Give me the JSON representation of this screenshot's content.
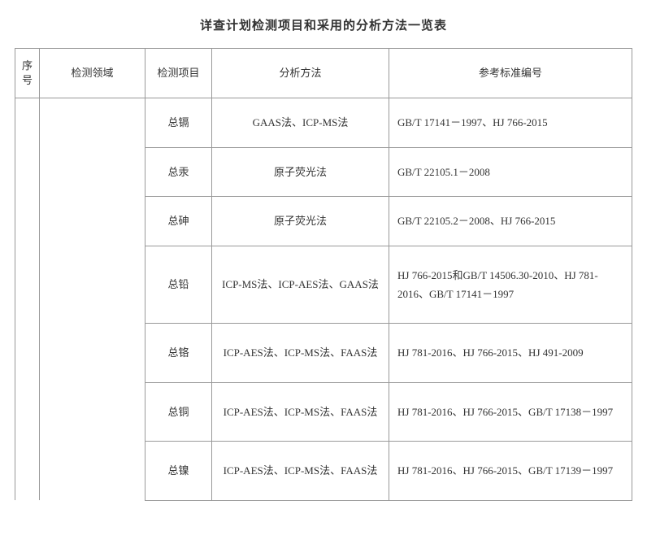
{
  "title": "详查计划检测项目和采用的分析方法一览表",
  "headers": {
    "seq": "序号",
    "domain": "检测领域",
    "item": "检测项目",
    "method": "分析方法",
    "standard": "参考标准编号"
  },
  "rows": [
    {
      "item": "总镉",
      "method": "GAAS法、ICP-MS法",
      "standard": "GB/T 17141－1997、HJ 766-2015"
    },
    {
      "item": "总汞",
      "method": "原子荧光法",
      "standard": "GB/T 22105.1－2008"
    },
    {
      "item": "总砷",
      "method": "原子荧光法",
      "standard": "GB/T 22105.2－2008、HJ 766-2015"
    },
    {
      "item": "总铅",
      "method": "ICP-MS法、ICP-AES法、GAAS法",
      "standard": "HJ 766-2015和GB/T 14506.30-2010、HJ 781-2016、GB/T 17141－1997"
    },
    {
      "item": "总铬",
      "method": "ICP-AES法、ICP-MS法、FAAS法",
      "standard": "HJ 781-2016、HJ 766-2015、HJ 491-2009"
    },
    {
      "item": "总铜",
      "method": "ICP-AES法、ICP-MS法、FAAS法",
      "standard": "HJ 781-2016、HJ 766-2015、GB/T 17138－1997"
    },
    {
      "item": "总镍",
      "method": "ICP-AES法、ICP-MS法、FAAS法",
      "standard": "HJ 781-2016、HJ 766-2015、GB/T 17139－1997"
    }
  ]
}
